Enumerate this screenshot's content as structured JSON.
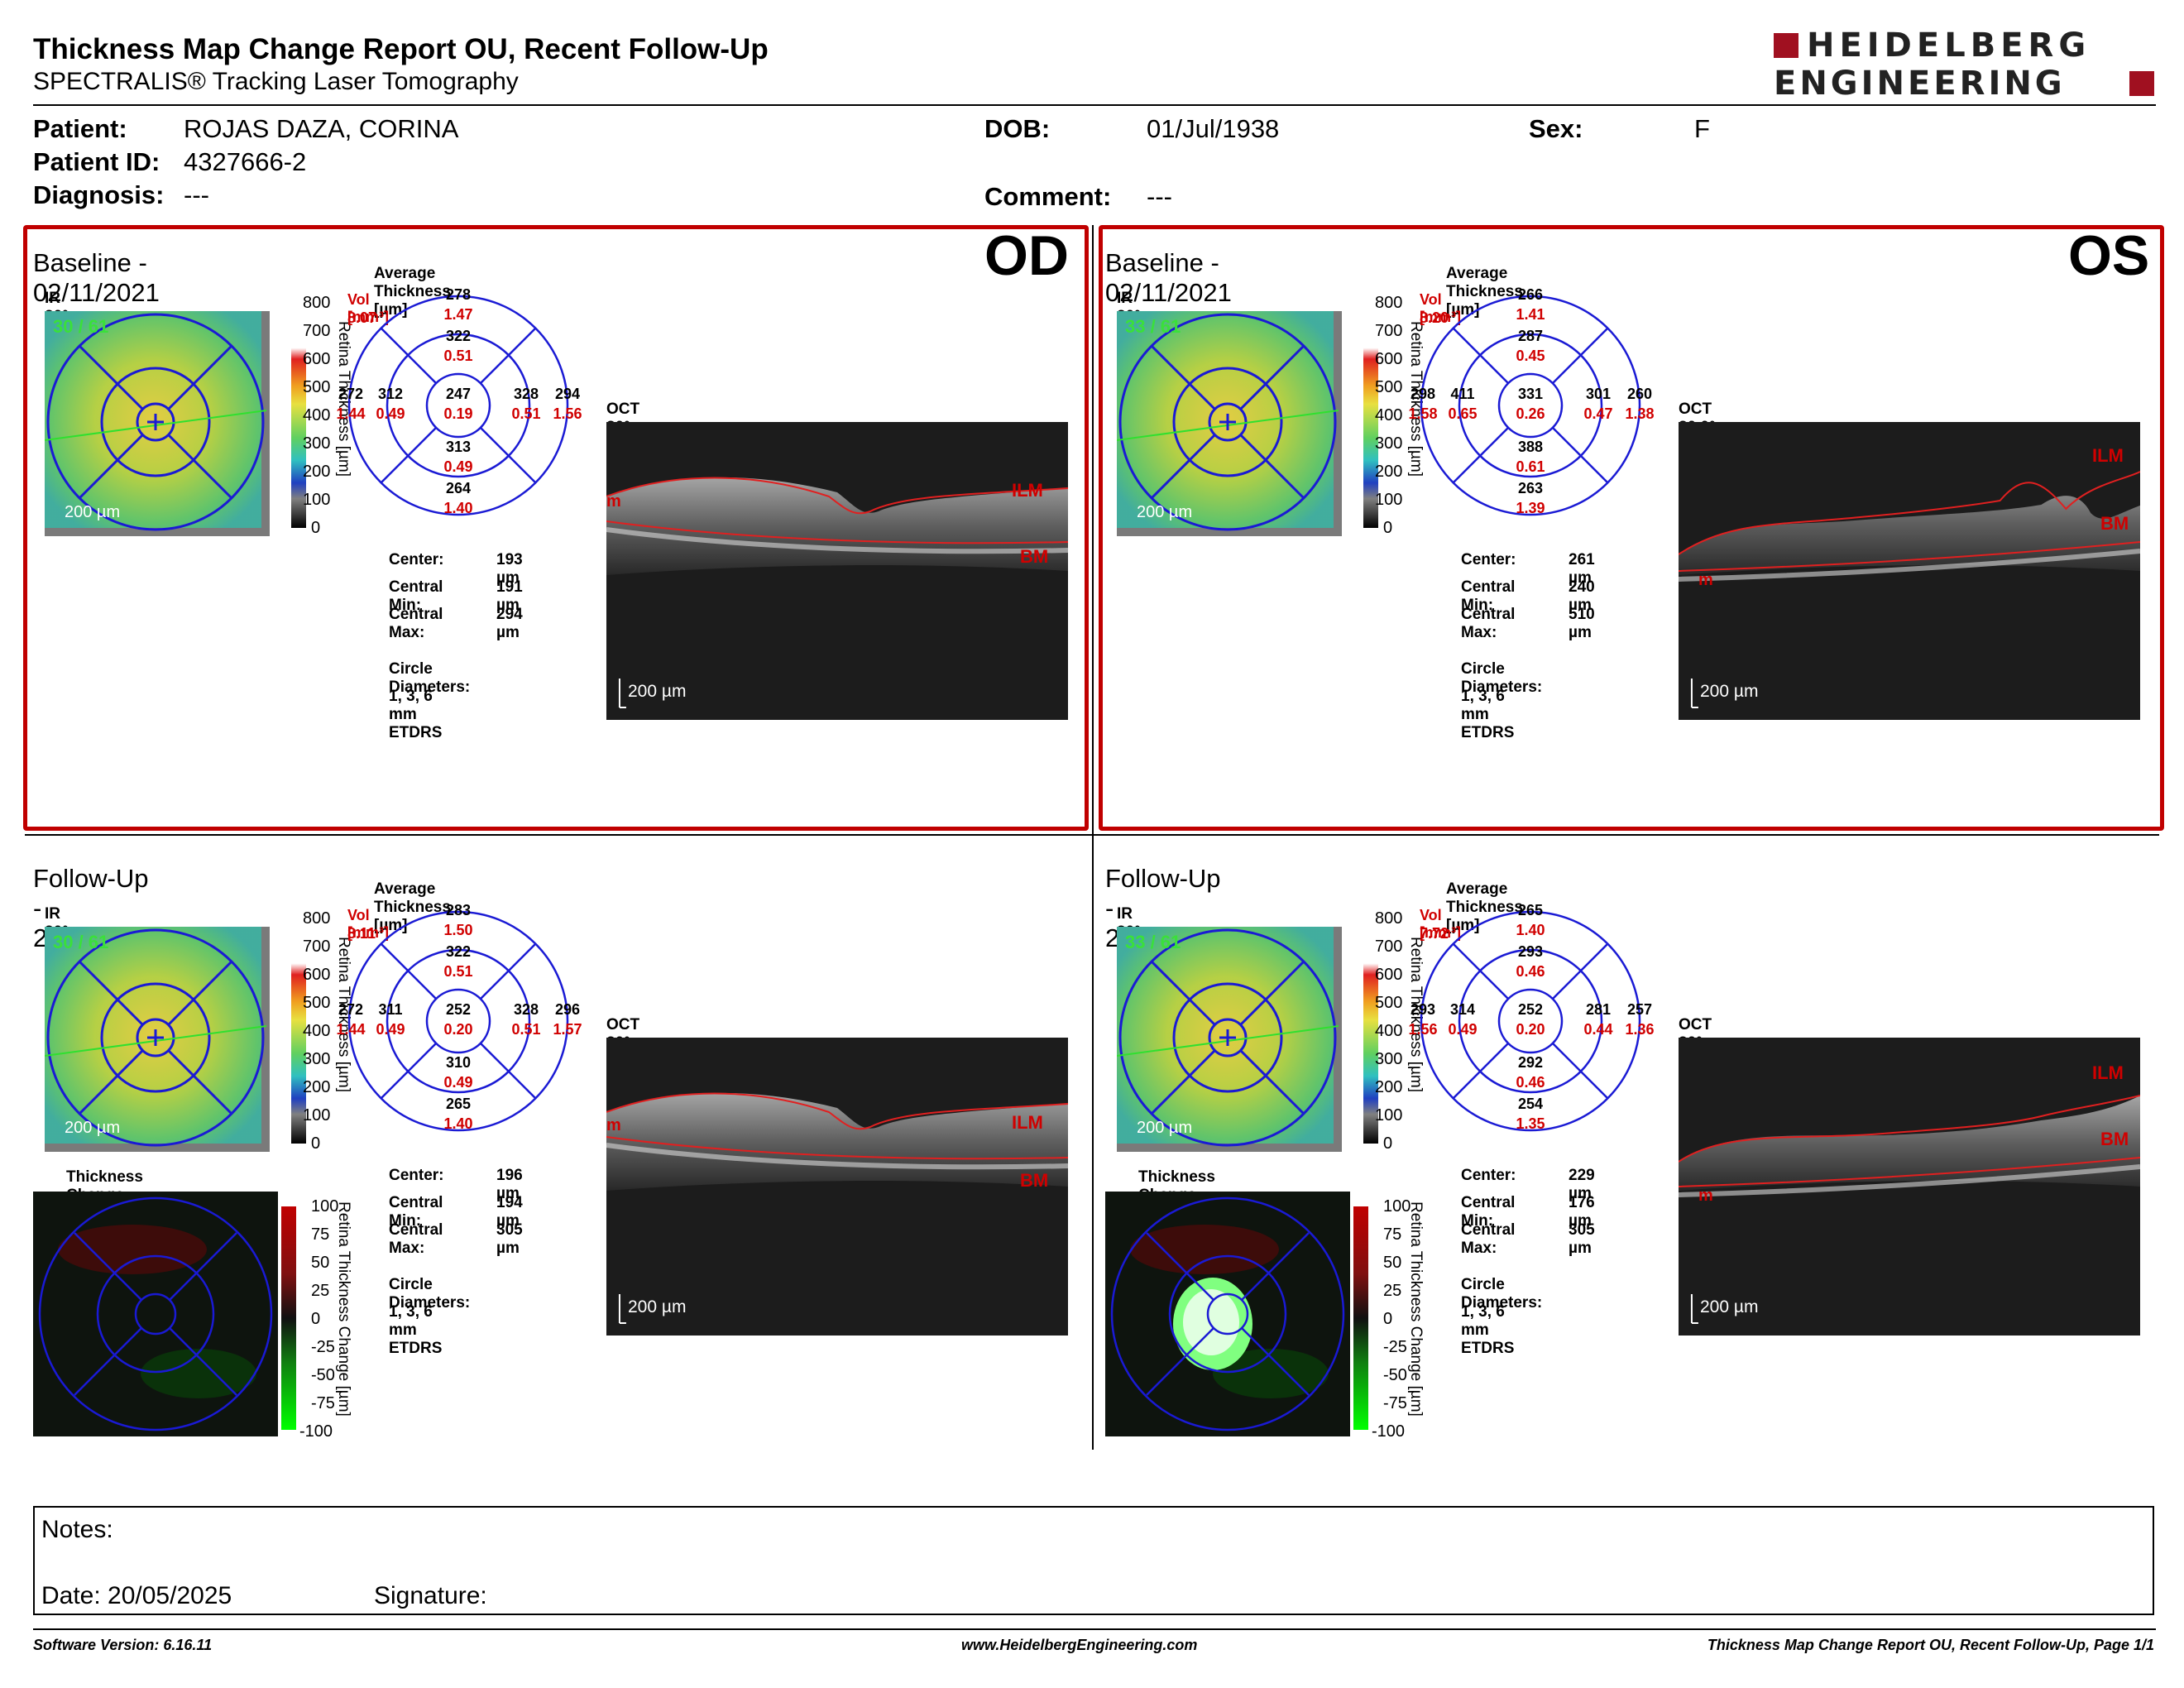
{
  "header": {
    "title": "Thickness Map Change Report OU, Recent Follow-Up",
    "subtitle": "SPECTRALIS® Tracking Laser Tomography",
    "logo_line1": "HEIDELBERG",
    "logo_line2": "ENGINEERING"
  },
  "patient": {
    "patient_label": "Patient:",
    "patient_value": "ROJAS DAZA, CORINA",
    "id_label": "Patient ID:",
    "id_value": "4327666-2",
    "diagnosis_label": "Diagnosis:",
    "diagnosis_value": "---",
    "dob_label": "DOB:",
    "dob_value": "01/Jul/1938",
    "comment_label": "Comment:",
    "comment_value": "---",
    "sex_label": "Sex:",
    "sex_value": "F"
  },
  "colors": {
    "red_frame": "#c00000",
    "etdrs_blue": "#1a1ad4",
    "vol_red": "#d00000"
  },
  "common": {
    "avg_label": "Average Thickness [µm]",
    "vol_label": "Vol [mm³]",
    "ir_label": "IR 30° ART [HS]",
    "scale_bar": "200 µm",
    "center_label": "Center:",
    "cmin_label": "Central Min:",
    "cmax_label": "Central Max:",
    "circle_label": "Circle Diameters:",
    "circle_value": "1, 3, 6 mm ETDRS",
    "retina_axis": "Retina Thickness [µm]",
    "change_axis": "Retina Thickness Change [µm]",
    "change_title": "Thickness Change [µm]",
    "ilm": "ILM",
    "bm": "BM",
    "m": "m",
    "thick_ticks": [
      "800",
      "700",
      "600",
      "500",
      "400",
      "300",
      "200",
      "100",
      "0"
    ],
    "change_ticks": [
      "100",
      "75",
      "50",
      "25",
      "0",
      "-25",
      "-50",
      "-75",
      "-100"
    ]
  },
  "panels": {
    "od_base": {
      "eye": "OD",
      "title": "Baseline - 02/11/2021",
      "quality": "30 / 61",
      "vol": "8.07",
      "oct_label": "OCT 30° (8.4 mm) ART (11) Q: 30 [HS]",
      "etdrs": {
        "top_t": "278",
        "top_v": "1.47",
        "itop_t": "322",
        "itop_v": "0.51",
        "left_t": "272",
        "left_v": "1.44",
        "ileft_t": "312",
        "ileft_v": "0.49",
        "center_t": "247",
        "center_v": "0.19",
        "iright_t": "328",
        "iright_v": "0.51",
        "right_t": "294",
        "right_v": "1.56",
        "ibot_t": "313",
        "ibot_v": "0.49",
        "bot_t": "264",
        "bot_v": "1.40"
      },
      "center": "193 µm",
      "cmin": "191 µm",
      "cmax": "294 µm"
    },
    "os_base": {
      "eye": "OS",
      "title": "Baseline - 02/11/2021",
      "quality": "33 / 61",
      "vol": "8.20",
      "oct_label": "OCT 30.0° (8.6 mm) ART (10) Q: 26 [HS]",
      "etdrs": {
        "top_t": "266",
        "top_v": "1.41",
        "itop_t": "287",
        "itop_v": "0.45",
        "left_t": "298",
        "left_v": "1.58",
        "ileft_t": "411",
        "ileft_v": "0.65",
        "center_t": "331",
        "center_v": "0.26",
        "iright_t": "301",
        "iright_v": "0.47",
        "right_t": "260",
        "right_v": "1.38",
        "ibot_t": "388",
        "ibot_v": "0.61",
        "bot_t": "263",
        "bot_v": "1.39"
      },
      "center": "261 µm",
      "cmin": "240 µm",
      "cmax": "510 µm"
    },
    "od_fu": {
      "title": "Follow-Up - 20/05/2025",
      "quality": "30 / 61",
      "vol": "8.11",
      "oct_label": "OCT 30° (8.4 mm) ART (10) Q: 28 [HS]",
      "etdrs": {
        "top_t": "283",
        "top_v": "1.50",
        "itop_t": "322",
        "itop_v": "0.51",
        "left_t": "272",
        "left_v": "1.44",
        "ileft_t": "311",
        "ileft_v": "0.49",
        "center_t": "252",
        "center_v": "0.20",
        "iright_t": "328",
        "iright_v": "0.51",
        "right_t": "296",
        "right_v": "1.57",
        "ibot_t": "310",
        "ibot_v": "0.49",
        "bot_t": "265",
        "bot_v": "1.40"
      },
      "center": "196 µm",
      "cmin": "194 µm",
      "cmax": "305 µm"
    },
    "os_fu": {
      "title": "Follow-Up - 20/05/2025",
      "quality": "33 / 61",
      "vol": "7.72",
      "oct_label": "OCT 30° (8.6 mm) ART (11) Q: 31 [HS]",
      "etdrs": {
        "top_t": "265",
        "top_v": "1.40",
        "itop_t": "293",
        "itop_v": "0.46",
        "left_t": "293",
        "left_v": "1.56",
        "ileft_t": "314",
        "ileft_v": "0.49",
        "center_t": "252",
        "center_v": "0.20",
        "iright_t": "281",
        "iright_v": "0.44",
        "right_t": "257",
        "right_v": "1.36",
        "ibot_t": "292",
        "ibot_v": "0.46",
        "bot_t": "254",
        "bot_v": "1.35"
      },
      "center": "229 µm",
      "cmin": "176 µm",
      "cmax": "305 µm"
    }
  },
  "notes": {
    "notes_label": "Notes:",
    "date_label": "Date: 20/05/2025",
    "signature_label": "Signature:"
  },
  "footer": {
    "left": "Software Version: 6.16.11",
    "center": "www.HeidelbergEngineering.com",
    "right": "Thickness Map Change Report OU, Recent Follow-Up, Page 1/1"
  }
}
